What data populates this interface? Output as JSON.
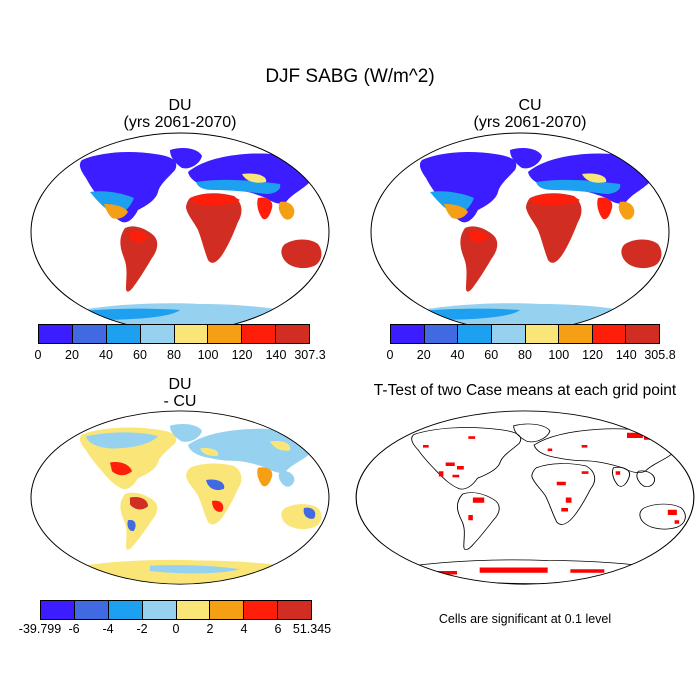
{
  "figure": {
    "title": "DJF SABG (W/m^2)"
  },
  "panels": {
    "du": {
      "title_line1": "DU",
      "title_line2": "(yrs 2061-2070)"
    },
    "cu": {
      "title_line1": "CU",
      "title_line2": "(yrs 2061-2070)"
    },
    "diff": {
      "title_line1": "DU",
      "title_line2": "- CU"
    },
    "ttest": {
      "title": "T-Test of two Case means at each grid point",
      "note": "Cells are significant at 0.1 level"
    }
  },
  "colorbars": {
    "du": {
      "labels": [
        "0",
        "20",
        "40",
        "60",
        "80",
        "100",
        "120",
        "140",
        "307.3"
      ]
    },
    "cu": {
      "labels": [
        "0",
        "20",
        "40",
        "60",
        "80",
        "100",
        "120",
        "140",
        "305.8"
      ]
    },
    "diff": {
      "labels": [
        "-39.799",
        "-6",
        "-4",
        "-2",
        "0",
        "2",
        "4",
        "6",
        "51.345"
      ]
    }
  },
  "colors": {
    "scale": [
      "#3c1dff",
      "#4169e1",
      "#1ea0f0",
      "#96d2f0",
      "#fae678",
      "#f5a014",
      "#ff1e0a",
      "#d22d23"
    ],
    "significant": "#ff0000",
    "coastline": "#000000"
  }
}
